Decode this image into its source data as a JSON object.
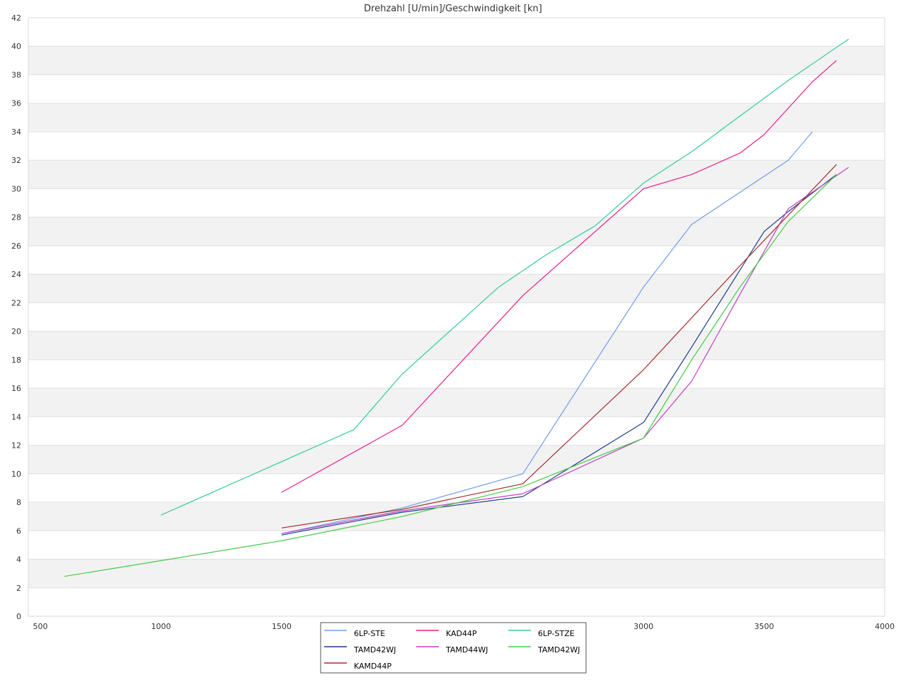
{
  "chart_data": {
    "type": "line",
    "title": "Drehzahl [U/min]/Geschwindigkeit [kn]",
    "xlabel": "",
    "ylabel": "",
    "xlim": [
      450,
      4000
    ],
    "ylim": [
      0,
      42
    ],
    "x_ticks": [
      500,
      1000,
      1500,
      2000,
      2500,
      3000,
      3500,
      4000
    ],
    "x_tick_labels": [
      "500",
      "1000",
      "1500",
      "2000",
      "2500",
      "3000",
      "3500",
      "4000"
    ],
    "y_ticks": [
      0,
      2,
      4,
      6,
      8,
      10,
      12,
      14,
      16,
      18,
      20,
      22,
      24,
      26,
      28,
      30,
      32,
      34,
      36,
      38,
      40,
      42
    ],
    "y_tick_labels": [
      "0",
      "2",
      "4",
      "6",
      "8",
      "10",
      "12",
      "14",
      "16",
      "18",
      "20",
      "22",
      "24",
      "26",
      "28",
      "30",
      "32",
      "34",
      "36",
      "38",
      "40",
      "42"
    ],
    "grid": "horizontal-bands",
    "legend_position": "bottom-center",
    "series": [
      {
        "name": "6LP-STE",
        "color": "#6d9eeb",
        "points": [
          [
            1500,
            5.8
          ],
          [
            2000,
            7.6
          ],
          [
            2500,
            10.0
          ],
          [
            3000,
            23.1
          ],
          [
            3200,
            27.5
          ],
          [
            3600,
            32.0
          ],
          [
            3700,
            34.0
          ]
        ]
      },
      {
        "name": "KAD44P",
        "color": "#e91e8c",
        "points": [
          [
            1500,
            8.7
          ],
          [
            2000,
            13.4
          ],
          [
            2500,
            22.5
          ],
          [
            3000,
            30.0
          ],
          [
            3200,
            31.0
          ],
          [
            3400,
            32.5
          ],
          [
            3500,
            33.8
          ],
          [
            3700,
            37.5
          ],
          [
            3800,
            39.0
          ]
        ]
      },
      {
        "name": "6LP-STZE",
        "color": "#33cc99",
        "points": [
          [
            1000,
            7.1
          ],
          [
            1800,
            13.1
          ],
          [
            2000,
            17.0
          ],
          [
            2400,
            23.1
          ],
          [
            2600,
            25.4
          ],
          [
            2800,
            27.4
          ],
          [
            3000,
            30.4
          ],
          [
            3200,
            32.6
          ],
          [
            3600,
            37.6
          ],
          [
            3850,
            40.5
          ]
        ]
      },
      {
        "name": "TAMD42WJ",
        "color": "#1a3c8c",
        "points": [
          [
            1500,
            5.7
          ],
          [
            2000,
            7.3
          ],
          [
            2500,
            8.4
          ],
          [
            3000,
            13.6
          ],
          [
            3200,
            18.9
          ],
          [
            3500,
            27.0
          ],
          [
            3600,
            28.4
          ],
          [
            3800,
            31.0
          ]
        ]
      },
      {
        "name": "TAMD44WJ",
        "color": "#c040c0",
        "points": [
          [
            1500,
            5.8
          ],
          [
            2000,
            7.4
          ],
          [
            2500,
            8.6
          ],
          [
            3000,
            12.5
          ],
          [
            3200,
            16.5
          ],
          [
            3400,
            22.6
          ],
          [
            3600,
            28.6
          ],
          [
            3850,
            31.5
          ]
        ]
      },
      {
        "name": "TAMD42WJ",
        "color": "#44cc44",
        "points": [
          [
            600,
            2.8
          ],
          [
            1000,
            3.9
          ],
          [
            1500,
            5.3
          ],
          [
            2000,
            7.0
          ],
          [
            2500,
            9.1
          ],
          [
            3000,
            12.5
          ],
          [
            3200,
            18.0
          ],
          [
            3400,
            23.1
          ],
          [
            3600,
            27.7
          ],
          [
            3800,
            31.0
          ]
        ]
      },
      {
        "name": "KAMD44P",
        "color": "#a52a2a",
        "points": [
          [
            1500,
            6.2
          ],
          [
            2000,
            7.5
          ],
          [
            2500,
            9.3
          ],
          [
            3000,
            17.3
          ],
          [
            3400,
            24.6
          ],
          [
            3800,
            31.7
          ]
        ]
      }
    ]
  }
}
